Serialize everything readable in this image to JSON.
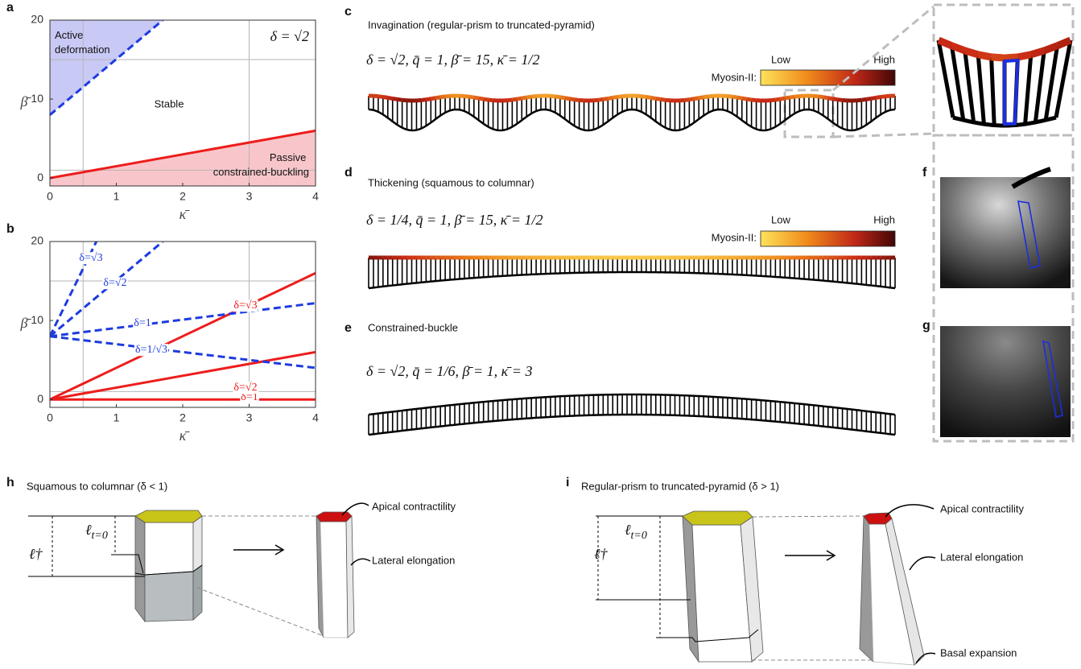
{
  "chart_data": [
    {
      "type": "line",
      "panel": "a",
      "xlabel": "κ̄",
      "ylabel": "β̄",
      "xlim": [
        0,
        4
      ],
      "ylim": [
        -1,
        20
      ],
      "xticks": [
        0,
        1,
        2,
        3,
        4
      ],
      "yticks": [
        0,
        10,
        20
      ],
      "reference_lines": {
        "x": [
          0.5,
          3
        ],
        "y": [
          1,
          15
        ]
      },
      "series": [
        {
          "name": "Active deformation",
          "color": "#1e3be0",
          "dash": true,
          "fill": "above",
          "fill_color": "#c9c9f6",
          "x": [
            0,
            1.7
          ],
          "values": [
            8,
            20
          ]
        },
        {
          "name": "Passive constrained-buckling",
          "color": "#ee1c1c",
          "dash": false,
          "fill": "below",
          "fill_color": "#f8c6ca",
          "x": [
            0,
            4
          ],
          "values": [
            0,
            6
          ]
        }
      ],
      "annotations": [
        "δ = √2",
        "Stable"
      ]
    },
    {
      "type": "line",
      "panel": "b",
      "xlabel": "κ̄",
      "ylabel": "β̄",
      "xlim": [
        0,
        4
      ],
      "ylim": [
        -1,
        20
      ],
      "xticks": [
        0,
        1,
        2,
        3,
        4
      ],
      "yticks": [
        0,
        10,
        20
      ],
      "reference_lines": {
        "x": [
          0.5,
          3
        ],
        "y": [
          1,
          15
        ]
      },
      "series": [
        {
          "name": "δ=1",
          "color": "#ee1c1c",
          "dash": false,
          "x": [
            0,
            4
          ],
          "values": [
            0,
            0
          ]
        },
        {
          "name": "δ=√2",
          "color": "#ee1c1c",
          "dash": false,
          "x": [
            0,
            4
          ],
          "values": [
            0,
            6
          ]
        },
        {
          "name": "δ=√3",
          "color": "#ee1c1c",
          "dash": false,
          "x": [
            0,
            4
          ],
          "values": [
            0,
            16
          ]
        },
        {
          "name": "δ=√3",
          "color": "#1e3be0",
          "dash": true,
          "x": [
            0,
            0.7
          ],
          "values": [
            8,
            20
          ]
        },
        {
          "name": "δ=√2",
          "color": "#1e3be0",
          "dash": true,
          "x": [
            0,
            1.7
          ],
          "values": [
            8,
            20
          ]
        },
        {
          "name": "δ=1",
          "color": "#1e3be0",
          "dash": true,
          "x": [
            0,
            4
          ],
          "values": [
            8,
            12.2
          ]
        },
        {
          "name": "δ=1/√3",
          "color": "#1e3be0",
          "dash": true,
          "x": [
            0,
            4
          ],
          "values": [
            8,
            4
          ]
        }
      ]
    }
  ],
  "panels": {
    "c": {
      "letter": "c",
      "title": "Invagination (regular-prism to truncated-pyramid)",
      "params": "δ = √2,  q̄ = 1,  β̄ = 15,  κ̄ = 1/2",
      "colorbar": {
        "label": "Myosin-II:",
        "low": "Low",
        "high": "High"
      }
    },
    "d": {
      "letter": "d",
      "title": "Thickening (squamous to columnar)",
      "params": "δ = 1/4,  q̄ = 1,  β̄ = 15,  κ̄ = 1/2",
      "colorbar": {
        "label": "Myosin-II:",
        "low": "Low",
        "high": "High"
      }
    },
    "e": {
      "letter": "e",
      "title": "Constrained-buckle",
      "params": "δ = √2,  q̄ = 1/6,  β̄ = 1,  κ̄ = 3"
    },
    "f": {
      "letter": "f"
    },
    "g": {
      "letter": "g"
    },
    "h": {
      "letter": "h",
      "title": "Squamous to columnar (δ < 1)",
      "ell_dagger": "ℓ†",
      "ell_t0": "ℓt=0",
      "apical": "Apical contractility",
      "lateral": "Lateral elongation"
    },
    "i": {
      "letter": "i",
      "title": "Regular-prism to truncated-pyramid (δ > 1)",
      "ell_dagger": "ℓ†",
      "ell_t0": "ℓt=0",
      "apical": "Apical contractility",
      "lateral": "Lateral elongation",
      "basal": "Basal expansion"
    }
  }
}
